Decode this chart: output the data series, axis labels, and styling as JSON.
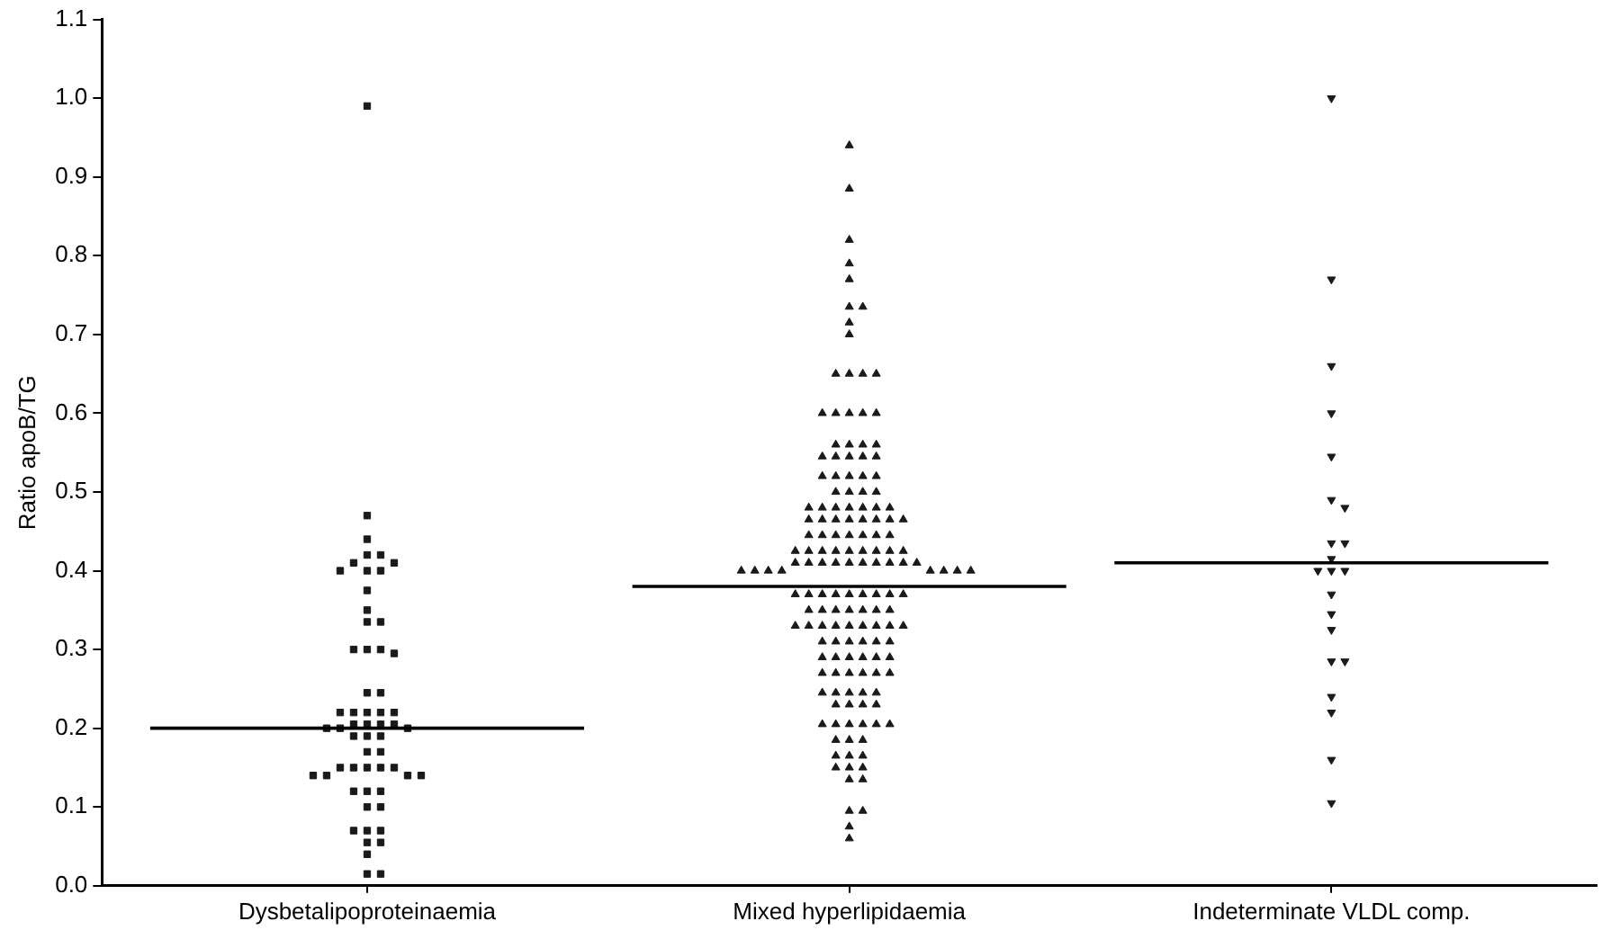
{
  "chart_data": {
    "type": "scatter",
    "ylabel": "Ratio apoB/TG",
    "categories": [
      "Dysbetalipoproteinaemia",
      "Mixed hyperlipidaemia",
      "Indeterminate VLDL comp."
    ],
    "ylim": [
      0,
      1.1
    ],
    "yticks": [
      {
        "value": 0,
        "label": "0.0"
      },
      0.1,
      0.2,
      0.3,
      0.4,
      0.5,
      0.6,
      0.7,
      0.8,
      0.9,
      {
        "value": 1,
        "label": "1.0"
      },
      1.1
    ],
    "grid": false,
    "legend": false,
    "series": [
      {
        "marker": "square",
        "color": "#1a1a1a",
        "x": [
          "Dysbetalipoproteinaemia",
          "Dysbetalipoproteinaemia",
          "Dysbetalipoproteinaemia",
          "Dysbetalipoproteinaemia",
          "Dysbetalipoproteinaemia",
          "Dysbetalipoproteinaemia",
          "Dysbetalipoproteinaemia",
          "Dysbetalipoproteinaemia",
          "Dysbetalipoproteinaemia",
          "Dysbetalipoproteinaemia",
          "Dysbetalipoproteinaemia",
          "Dysbetalipoproteinaemia",
          "Dysbetalipoproteinaemia",
          "Dysbetalipoproteinaemia",
          "Dysbetalipoproteinaemia",
          "Dysbetalipoproteinaemia",
          "Dysbetalipoproteinaemia",
          "Dysbetalipoproteinaemia",
          "Dysbetalipoproteinaemia",
          "Dysbetalipoproteinaemia",
          "Dysbetalipoproteinaemia",
          "Dysbetalipoproteinaemia",
          "Dysbetalipoproteinaemia",
          "Dysbetalipoproteinaemia",
          "Dysbetalipoproteinaemia",
          "Dysbetalipoproteinaemia",
          "Dysbetalipoproteinaemia",
          "Dysbetalipoproteinaemia",
          "Dysbetalipoproteinaemia",
          "Dysbetalipoproteinaemia",
          "Dysbetalipoproteinaemia",
          "Dysbetalipoproteinaemia",
          "Dysbetalipoproteinaemia",
          "Dysbetalipoproteinaemia",
          "Dysbetalipoproteinaemia",
          "Dysbetalipoproteinaemia",
          "Dysbetalipoproteinaemia",
          "Dysbetalipoproteinaemia",
          "Dysbetalipoproteinaemia",
          "Dysbetalipoproteinaemia",
          "Dysbetalipoproteinaemia",
          "Dysbetalipoproteinaemia",
          "Dysbetalipoproteinaemia",
          "Dysbetalipoproteinaemia",
          "Dysbetalipoproteinaemia",
          "Dysbetalipoproteinaemia",
          "Dysbetalipoproteinaemia",
          "Dysbetalipoproteinaemia",
          "Dysbetalipoproteinaemia",
          "Dysbetalipoproteinaemia",
          "Dysbetalipoproteinaemia",
          "Dysbetalipoproteinaemia",
          "Dysbetalipoproteinaemia",
          "Dysbetalipoproteinaemia",
          "Dysbetalipoproteinaemia",
          "Dysbetalipoproteinaemia",
          "Dysbetalipoproteinaemia",
          "Dysbetalipoproteinaemia",
          "Dysbetalipoproteinaemia"
        ],
        "values": [
          0.99,
          0.47,
          0.44,
          0.42,
          0.42,
          0.41,
          0.41,
          0.4,
          0.4,
          0.4,
          0.375,
          0.35,
          0.335,
          0.335,
          0.3,
          0.3,
          0.3,
          0.295,
          0.245,
          0.245,
          0.22,
          0.22,
          0.22,
          0.22,
          0.22,
          0.205,
          0.205,
          0.205,
          0.205,
          0.2,
          0.2,
          0.2,
          0.19,
          0.19,
          0.19,
          0.17,
          0.17,
          0.15,
          0.15,
          0.15,
          0.15,
          0.15,
          0.14,
          0.14,
          0.14,
          0.14,
          0.12,
          0.12,
          0.12,
          0.1,
          0.1,
          0.07,
          0.07,
          0.07,
          0.055,
          0.055,
          0.04,
          0.015,
          0.015
        ]
      },
      {
        "marker": "triangle",
        "color": "#1a1a1a",
        "x": [
          "Mixed hyperlipidaemia",
          "Mixed hyperlipidaemia",
          "Mixed hyperlipidaemia",
          "Mixed hyperlipidaemia",
          "Mixed hyperlipidaemia",
          "Mixed hyperlipidaemia",
          "Mixed hyperlipidaemia",
          "Mixed hyperlipidaemia",
          "Mixed hyperlipidaemia",
          "Mixed hyperlipidaemia",
          "Mixed hyperlipidaemia",
          "Mixed hyperlipidaemia",
          "Mixed hyperlipidaemia",
          "Mixed hyperlipidaemia",
          "Mixed hyperlipidaemia",
          "Mixed hyperlipidaemia",
          "Mixed hyperlipidaemia",
          "Mixed hyperlipidaemia",
          "Mixed hyperlipidaemia",
          "Mixed hyperlipidaemia",
          "Mixed hyperlipidaemia",
          "Mixed hyperlipidaemia",
          "Mixed hyperlipidaemia",
          "Mixed hyperlipidaemia",
          "Mixed hyperlipidaemia",
          "Mixed hyperlipidaemia",
          "Mixed hyperlipidaemia",
          "Mixed hyperlipidaemia",
          "Mixed hyperlipidaemia",
          "Mixed hyperlipidaemia",
          "Mixed hyperlipidaemia",
          "Mixed hyperlipidaemia",
          "Mixed hyperlipidaemia",
          "Mixed hyperlipidaemia",
          "Mixed hyperlipidaemia",
          "Mixed hyperlipidaemia",
          "Mixed hyperlipidaemia",
          "Mixed hyperlipidaemia",
          "Mixed hyperlipidaemia",
          "Mixed hyperlipidaemia",
          "Mixed hyperlipidaemia",
          "Mixed hyperlipidaemia",
          "Mixed hyperlipidaemia",
          "Mixed hyperlipidaemia",
          "Mixed hyperlipidaemia",
          "Mixed hyperlipidaemia",
          "Mixed hyperlipidaemia",
          "Mixed hyperlipidaemia",
          "Mixed hyperlipidaemia",
          "Mixed hyperlipidaemia",
          "Mixed hyperlipidaemia",
          "Mixed hyperlipidaemia",
          "Mixed hyperlipidaemia",
          "Mixed hyperlipidaemia",
          "Mixed hyperlipidaemia",
          "Mixed hyperlipidaemia",
          "Mixed hyperlipidaemia",
          "Mixed hyperlipidaemia",
          "Mixed hyperlipidaemia",
          "Mixed hyperlipidaemia",
          "Mixed hyperlipidaemia",
          "Mixed hyperlipidaemia",
          "Mixed hyperlipidaemia",
          "Mixed hyperlipidaemia",
          "Mixed hyperlipidaemia",
          "Mixed hyperlipidaemia",
          "Mixed hyperlipidaemia",
          "Mixed hyperlipidaemia",
          "Mixed hyperlipidaemia",
          "Mixed hyperlipidaemia",
          "Mixed hyperlipidaemia",
          "Mixed hyperlipidaemia",
          "Mixed hyperlipidaemia",
          "Mixed hyperlipidaemia",
          "Mixed hyperlipidaemia",
          "Mixed hyperlipidaemia",
          "Mixed hyperlipidaemia",
          "Mixed hyperlipidaemia",
          "Mixed hyperlipidaemia",
          "Mixed hyperlipidaemia",
          "Mixed hyperlipidaemia",
          "Mixed hyperlipidaemia",
          "Mixed hyperlipidaemia",
          "Mixed hyperlipidaemia",
          "Mixed hyperlipidaemia",
          "Mixed hyperlipidaemia",
          "Mixed hyperlipidaemia",
          "Mixed hyperlipidaemia",
          "Mixed hyperlipidaemia",
          "Mixed hyperlipidaemia",
          "Mixed hyperlipidaemia",
          "Mixed hyperlipidaemia",
          "Mixed hyperlipidaemia",
          "Mixed hyperlipidaemia",
          "Mixed hyperlipidaemia",
          "Mixed hyperlipidaemia",
          "Mixed hyperlipidaemia",
          "Mixed hyperlipidaemia",
          "Mixed hyperlipidaemia",
          "Mixed hyperlipidaemia",
          "Mixed hyperlipidaemia",
          "Mixed hyperlipidaemia",
          "Mixed hyperlipidaemia",
          "Mixed hyperlipidaemia",
          "Mixed hyperlipidaemia",
          "Mixed hyperlipidaemia",
          "Mixed hyperlipidaemia",
          "Mixed hyperlipidaemia",
          "Mixed hyperlipidaemia",
          "Mixed hyperlipidaemia",
          "Mixed hyperlipidaemia",
          "Mixed hyperlipidaemia",
          "Mixed hyperlipidaemia",
          "Mixed hyperlipidaemia",
          "Mixed hyperlipidaemia",
          "Mixed hyperlipidaemia",
          "Mixed hyperlipidaemia",
          "Mixed hyperlipidaemia",
          "Mixed hyperlipidaemia",
          "Mixed hyperlipidaemia",
          "Mixed hyperlipidaemia",
          "Mixed hyperlipidaemia",
          "Mixed hyperlipidaemia",
          "Mixed hyperlipidaemia",
          "Mixed hyperlipidaemia",
          "Mixed hyperlipidaemia",
          "Mixed hyperlipidaemia",
          "Mixed hyperlipidaemia",
          "Mixed hyperlipidaemia",
          "Mixed hyperlipidaemia",
          "Mixed hyperlipidaemia",
          "Mixed hyperlipidaemia",
          "Mixed hyperlipidaemia",
          "Mixed hyperlipidaemia",
          "Mixed hyperlipidaemia",
          "Mixed hyperlipidaemia",
          "Mixed hyperlipidaemia",
          "Mixed hyperlipidaemia",
          "Mixed hyperlipidaemia",
          "Mixed hyperlipidaemia",
          "Mixed hyperlipidaemia",
          "Mixed hyperlipidaemia",
          "Mixed hyperlipidaemia",
          "Mixed hyperlipidaemia",
          "Mixed hyperlipidaemia",
          "Mixed hyperlipidaemia",
          "Mixed hyperlipidaemia",
          "Mixed hyperlipidaemia",
          "Mixed hyperlipidaemia",
          "Mixed hyperlipidaemia",
          "Mixed hyperlipidaemia",
          "Mixed hyperlipidaemia",
          "Mixed hyperlipidaemia",
          "Mixed hyperlipidaemia",
          "Mixed hyperlipidaemia",
          "Mixed hyperlipidaemia",
          "Mixed hyperlipidaemia",
          "Mixed hyperlipidaemia"
        ],
        "values": [
          0.94,
          0.885,
          0.82,
          0.79,
          0.77,
          0.735,
          0.735,
          0.715,
          0.7,
          0.65,
          0.65,
          0.65,
          0.65,
          0.6,
          0.6,
          0.6,
          0.6,
          0.6,
          0.56,
          0.56,
          0.56,
          0.56,
          0.545,
          0.545,
          0.545,
          0.545,
          0.545,
          0.52,
          0.52,
          0.52,
          0.52,
          0.52,
          0.5,
          0.5,
          0.5,
          0.5,
          0.48,
          0.48,
          0.48,
          0.48,
          0.48,
          0.48,
          0.48,
          0.465,
          0.465,
          0.465,
          0.465,
          0.465,
          0.465,
          0.465,
          0.465,
          0.445,
          0.445,
          0.445,
          0.445,
          0.445,
          0.445,
          0.445,
          0.425,
          0.425,
          0.425,
          0.425,
          0.425,
          0.425,
          0.425,
          0.425,
          0.425,
          0.41,
          0.41,
          0.41,
          0.41,
          0.41,
          0.41,
          0.41,
          0.41,
          0.41,
          0.41,
          0.4,
          0.4,
          0.4,
          0.4,
          0.4,
          0.4,
          0.4,
          0.4,
          0.37,
          0.37,
          0.37,
          0.37,
          0.37,
          0.37,
          0.37,
          0.37,
          0.37,
          0.35,
          0.35,
          0.35,
          0.35,
          0.35,
          0.35,
          0.35,
          0.33,
          0.33,
          0.33,
          0.33,
          0.33,
          0.33,
          0.33,
          0.33,
          0.33,
          0.31,
          0.31,
          0.31,
          0.31,
          0.31,
          0.31,
          0.29,
          0.29,
          0.29,
          0.29,
          0.29,
          0.29,
          0.27,
          0.27,
          0.27,
          0.27,
          0.27,
          0.27,
          0.245,
          0.245,
          0.245,
          0.245,
          0.245,
          0.23,
          0.23,
          0.23,
          0.23,
          0.205,
          0.205,
          0.205,
          0.205,
          0.205,
          0.205,
          0.185,
          0.185,
          0.185,
          0.165,
          0.165,
          0.165,
          0.15,
          0.15,
          0.15,
          0.135,
          0.135,
          0.095,
          0.095,
          0.075,
          0.06
        ]
      },
      {
        "marker": "triangle-down",
        "color": "#1a1a1a",
        "x": [
          "Indeterminate VLDL comp.",
          "Indeterminate VLDL comp.",
          "Indeterminate VLDL comp.",
          "Indeterminate VLDL comp.",
          "Indeterminate VLDL comp.",
          "Indeterminate VLDL comp.",
          "Indeterminate VLDL comp.",
          "Indeterminate VLDL comp.",
          "Indeterminate VLDL comp.",
          "Indeterminate VLDL comp.",
          "Indeterminate VLDL comp.",
          "Indeterminate VLDL comp.",
          "Indeterminate VLDL comp.",
          "Indeterminate VLDL comp.",
          "Indeterminate VLDL comp.",
          "Indeterminate VLDL comp.",
          "Indeterminate VLDL comp.",
          "Indeterminate VLDL comp.",
          "Indeterminate VLDL comp.",
          "Indeterminate VLDL comp.",
          "Indeterminate VLDL comp.",
          "Indeterminate VLDL comp."
        ],
        "values": [
          1.0,
          0.77,
          0.66,
          0.6,
          0.545,
          0.49,
          0.48,
          0.435,
          0.435,
          0.415,
          0.4,
          0.4,
          0.4,
          0.37,
          0.345,
          0.325,
          0.285,
          0.285,
          0.24,
          0.22,
          0.16,
          0.105
        ]
      }
    ],
    "ref_lines": [
      {
        "axis": "y",
        "value": 0.2,
        "color": "#000000"
      },
      {
        "axis": "y",
        "value": 0.38,
        "color": "#000000"
      },
      {
        "axis": "y",
        "value": 0.41,
        "color": "#000000"
      }
    ]
  }
}
